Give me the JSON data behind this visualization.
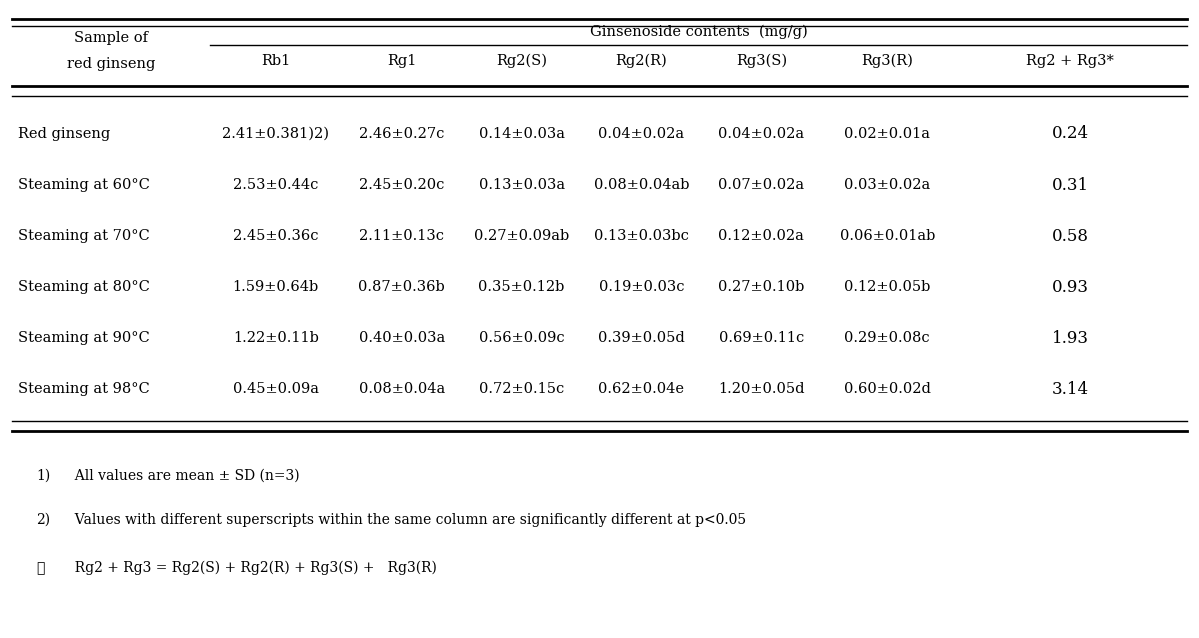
{
  "title": "Ginsenoside contents  (mg/g)",
  "col_header_row1": [
    "Sample of",
    "Ginsenoside contents  (mg/g)",
    "",
    "",
    "",
    "",
    "",
    ""
  ],
  "col_header_row2": [
    "red ginseng",
    "Rb1",
    "Rg1",
    "Rg2(S)",
    "Rg2(R)",
    "Rg3(S)",
    "Rg3(R)",
    "Rg2 + Rg3*"
  ],
  "rows": [
    [
      "Red ginseng",
      "2.41±0.381)2)",
      "2.46±0.27c",
      "0.14±0.03a",
      "0.04±0.02a",
      "0.04±0.02a",
      "0.02±0.01a",
      "0.24"
    ],
    [
      "Steaming at 60°C",
      "2.53±0.44c",
      "2.45±0.20c",
      "0.13±0.03a",
      "0.08±0.04ab",
      "0.07±0.02a",
      "0.03±0.02a",
      "0.31"
    ],
    [
      "Steaming at 70°C",
      "2.45±0.36c",
      "2.11±0.13c",
      "0.27±0.09ab",
      "0.13±0.03bc",
      "0.12±0.02a",
      "0.06±0.01ab",
      "0.58"
    ],
    [
      "Steaming at 80°C",
      "1.59±0.64b",
      "0.87±0.36b",
      "0.35±0.12b",
      "0.19±0.03c",
      "0.27±0.10b",
      "0.12±0.05b",
      "0.93"
    ],
    [
      "Steaming at 90°C",
      "1.22±0.11b",
      "0.40±0.03a",
      "0.56±0.09c",
      "0.39±0.05d",
      "0.69±0.11c",
      "0.29±0.08c",
      "1.93"
    ],
    [
      "Steaming at 98°C",
      "0.45±0.09a",
      "0.08±0.04a",
      "0.72±0.15c",
      "0.62±0.04e",
      "1.20±0.05d",
      "0.60±0.02d",
      "3.14"
    ]
  ],
  "footnotes": [
    "1)  All values are mean ± SD (n=3)",
    "2)  Values with different superscripts within the same column are significantly different at p<0.05",
    "※  Rg2 + Rg3 = Rg2(S) + Rg2(R) + Rg3(S) +   Rg3(R)"
  ],
  "background_color": "#ffffff",
  "text_color": "#000000",
  "font_size": 10.5,
  "header_font_size": 10.5,
  "footnote_font_size": 10.5
}
